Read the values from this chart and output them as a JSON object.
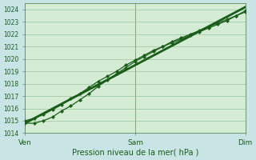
{
  "title": "",
  "xlabel": "Pression niveau de la mer( hPa )",
  "ylabel": "",
  "background_color": "#c8e4e4",
  "plot_bg": "#d4ecd4",
  "line_color": "#1a5c1a",
  "ylim": [
    1014,
    1024.5
  ],
  "yticks": [
    1014,
    1015,
    1016,
    1017,
    1018,
    1019,
    1020,
    1021,
    1022,
    1023,
    1024
  ],
  "xtick_labels": [
    "Ven",
    "Sam",
    "Dim"
  ],
  "xtick_positions": [
    0,
    48,
    96
  ],
  "x_total": 96,
  "line1_x": [
    0,
    4,
    8,
    12,
    16,
    20,
    24,
    28,
    32,
    36,
    40,
    44,
    48,
    52,
    56,
    60,
    64,
    68,
    72,
    76,
    80,
    84,
    88,
    92,
    96
  ],
  "line1_y": [
    1015.0,
    1015.2,
    1015.5,
    1015.9,
    1016.3,
    1016.8,
    1017.2,
    1017.7,
    1018.2,
    1018.6,
    1019.0,
    1019.5,
    1019.9,
    1020.3,
    1020.7,
    1021.0,
    1021.3,
    1021.6,
    1021.9,
    1022.2,
    1022.5,
    1022.8,
    1023.1,
    1023.5,
    1023.9
  ],
  "line2_x": [
    0,
    4,
    8,
    12,
    16,
    20,
    24,
    28,
    32,
    36,
    40,
    44,
    48,
    52,
    56,
    60,
    64,
    68,
    72,
    76,
    80,
    84,
    88,
    92,
    96
  ],
  "line2_y": [
    1014.8,
    1014.8,
    1015.0,
    1015.3,
    1015.8,
    1016.2,
    1016.7,
    1017.2,
    1017.8,
    1018.3,
    1018.8,
    1019.3,
    1019.8,
    1020.2,
    1020.6,
    1021.0,
    1021.4,
    1021.7,
    1022.0,
    1022.3,
    1022.6,
    1022.9,
    1023.2,
    1023.5,
    1023.8
  ],
  "line3_x": [
    0,
    96
  ],
  "line3_y": [
    1014.8,
    1024.2
  ],
  "marker_line1_x": [
    0,
    4,
    8,
    12,
    16,
    20,
    24,
    28,
    32,
    36,
    40,
    44,
    48,
    52,
    56,
    60,
    64,
    68,
    72,
    76,
    80,
    84,
    88,
    92,
    96
  ],
  "marker_line1_y": [
    1015.0,
    1015.2,
    1015.5,
    1015.9,
    1016.3,
    1016.8,
    1017.2,
    1017.7,
    1018.2,
    1018.6,
    1019.0,
    1019.5,
    1019.9,
    1020.3,
    1020.7,
    1021.0,
    1021.3,
    1021.6,
    1021.9,
    1022.2,
    1022.5,
    1022.8,
    1023.1,
    1023.5,
    1023.9
  ],
  "marker_line2_x": [
    0,
    4,
    8,
    12,
    16,
    20,
    24,
    28,
    32,
    36,
    40,
    44,
    48,
    52,
    56,
    60,
    64,
    68,
    72,
    76,
    80,
    84,
    88,
    92,
    96
  ],
  "marker_line2_y": [
    1014.8,
    1014.8,
    1015.0,
    1015.3,
    1015.8,
    1016.2,
    1016.7,
    1017.2,
    1017.8,
    1018.3,
    1018.8,
    1019.3,
    1019.8,
    1020.2,
    1020.6,
    1021.0,
    1021.4,
    1021.7,
    1022.0,
    1022.3,
    1022.6,
    1022.9,
    1023.2,
    1023.5,
    1023.8
  ]
}
